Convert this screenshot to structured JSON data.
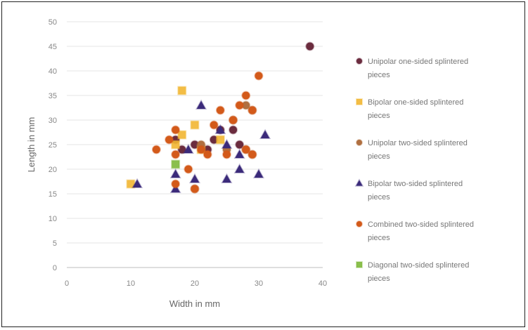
{
  "chart_data": {
    "type": "scatter",
    "xlabel": "Width in mm",
    "ylabel": "Length in mm",
    "xlim": [
      0,
      40
    ],
    "ylim": [
      0,
      50
    ],
    "x_ticks": [
      "0",
      "10",
      "20",
      "30",
      "40"
    ],
    "y_ticks": [
      "0",
      "5",
      "10",
      "15",
      "20",
      "25",
      "30",
      "35",
      "40",
      "45",
      "50"
    ],
    "grid": "horizontal",
    "legend_position": "right",
    "series": [
      {
        "name": "Unipolar one-sided splintered pieces",
        "marker": "circle",
        "color": "#6b2c3e",
        "points": [
          [
            38,
            45
          ],
          [
            17,
            26
          ],
          [
            18,
            24
          ],
          [
            20,
            25
          ],
          [
            22,
            24
          ],
          [
            24,
            28
          ],
          [
            26,
            28
          ],
          [
            23,
            26
          ],
          [
            27,
            25
          ]
        ]
      },
      {
        "name": "Bipolar one-sided splintered pieces",
        "marker": "square",
        "color": "#f2b632",
        "points": [
          [
            10,
            17
          ],
          [
            18,
            36
          ],
          [
            18,
            27
          ],
          [
            20,
            29
          ],
          [
            17,
            25
          ],
          [
            24,
            26
          ],
          [
            21,
            24
          ]
        ]
      },
      {
        "name": "Unipolar two-sided splintered pieces",
        "marker": "circle",
        "color": "#b06f40",
        "points": [
          [
            21,
            25
          ],
          [
            25,
            24
          ],
          [
            26,
            30
          ],
          [
            28,
            33
          ],
          [
            29,
            32
          ],
          [
            28,
            24
          ],
          [
            29,
            23
          ],
          [
            20,
            16
          ]
        ]
      },
      {
        "name": "Bipolar two-sided splintered pieces",
        "marker": "triangle",
        "color": "#3b2a7a",
        "points": [
          [
            11,
            17
          ],
          [
            17,
            19
          ],
          [
            17,
            16
          ],
          [
            19,
            24
          ],
          [
            20,
            18
          ],
          [
            21,
            33
          ],
          [
            24,
            28
          ],
          [
            25,
            25
          ],
          [
            25,
            18
          ],
          [
            27,
            20
          ],
          [
            27,
            23
          ],
          [
            30,
            19
          ],
          [
            31,
            27
          ]
        ]
      },
      {
        "name": "Combined two-sided splintered pieces",
        "marker": "circle",
        "color": "#d35a1a",
        "points": [
          [
            14,
            24
          ],
          [
            16,
            26
          ],
          [
            17,
            28
          ],
          [
            17,
            23
          ],
          [
            17,
            17
          ],
          [
            19,
            20
          ],
          [
            20,
            16
          ],
          [
            21,
            24
          ],
          [
            22,
            23
          ],
          [
            23,
            29
          ],
          [
            24,
            32
          ],
          [
            25,
            23
          ],
          [
            26,
            30
          ],
          [
            27,
            33
          ],
          [
            28,
            35
          ],
          [
            28,
            24
          ],
          [
            29,
            32
          ],
          [
            30,
            39
          ],
          [
            29,
            23
          ]
        ]
      },
      {
        "name": "Diagonal two-sided splintered pieces",
        "marker": "square",
        "color": "#7db83a",
        "points": [
          [
            17,
            21
          ]
        ]
      }
    ]
  }
}
